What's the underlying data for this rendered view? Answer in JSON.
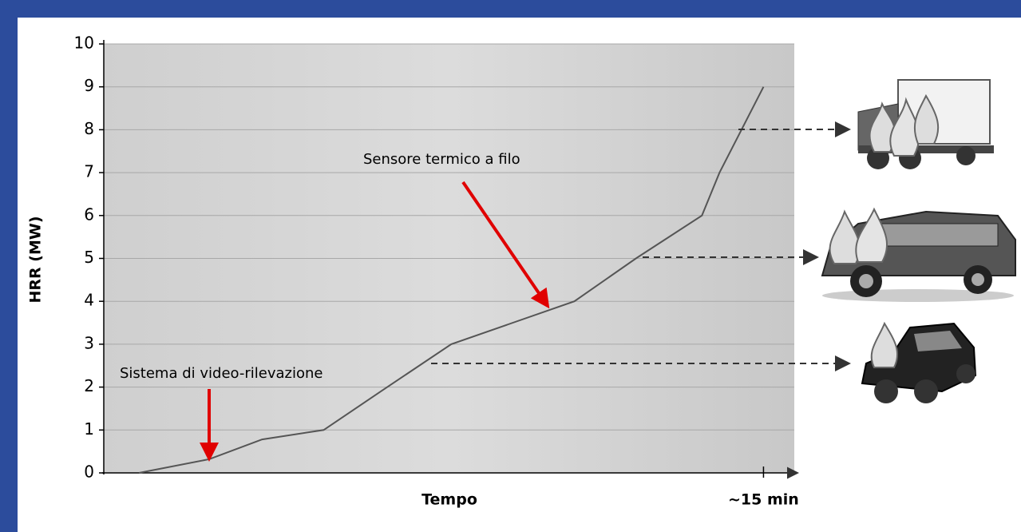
{
  "chart_data": {
    "type": "line",
    "xlabel": "Tempo",
    "ylabel": "HRR (MW)",
    "x": [
      0.8,
      2.4,
      3.6,
      5.0,
      6.3,
      7.9,
      10.7,
      12.1,
      13.6,
      14.0,
      15.0
    ],
    "series": [
      {
        "color": "#555555",
        "values": [
          0,
          0.32,
          0.78,
          1.0,
          1.9,
          3.0,
          4.0,
          5.0,
          6.0,
          7.0,
          9.0
        ]
      }
    ],
    "xlim": [
      0,
      15.7
    ],
    "ylim": [
      0,
      10
    ],
    "xticks": [
      {
        "value": 15,
        "label": "~15 min"
      }
    ],
    "yticks": [
      0,
      1,
      2,
      3,
      4,
      5,
      6,
      7,
      8,
      9,
      10
    ],
    "grid": true,
    "annotations": [
      "Sensore termico a filo",
      "Sistema di video-rilevazione"
    ]
  }
}
